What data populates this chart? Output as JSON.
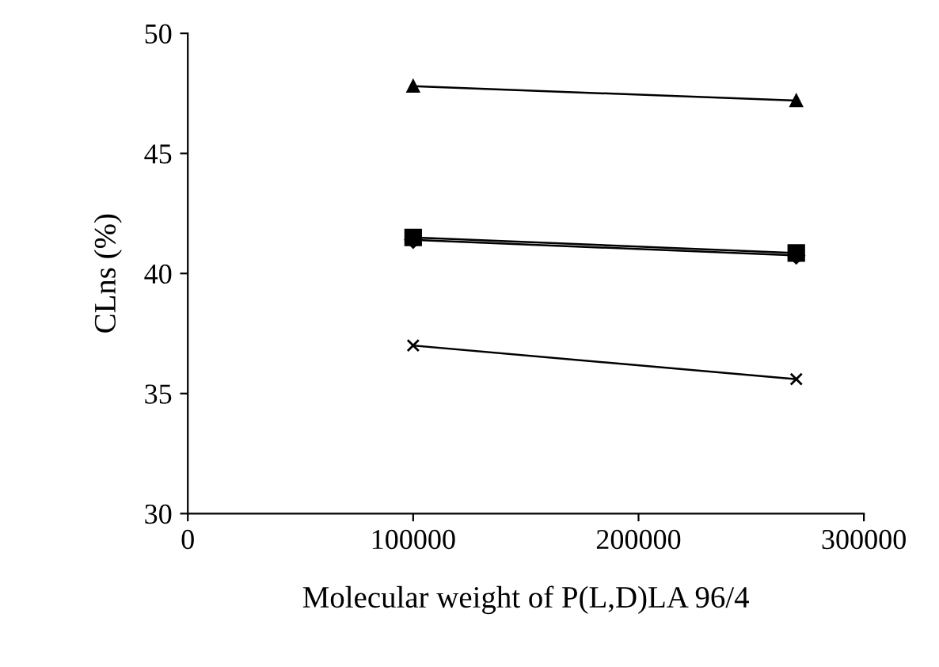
{
  "chart_data": {
    "type": "line",
    "xlabel": "Molecular weight of P(L,D)LA 96/4",
    "ylabel": "CLns (%)",
    "x": [
      100000,
      270000
    ],
    "series": [
      {
        "color": "#000000",
        "values": [
          47.8,
          47.2
        ],
        "marker": "triangle"
      },
      {
        "color": "#000000",
        "values": [
          41.5,
          40.85
        ],
        "marker": "square"
      },
      {
        "color": "#000000",
        "values": [
          41.4,
          40.75
        ],
        "marker": "diamond"
      },
      {
        "color": "#000000",
        "values": [
          37.0,
          35.6
        ],
        "marker": "cross"
      }
    ],
    "xlim": [
      0,
      300000
    ],
    "xticks": [
      0,
      100000,
      200000,
      300000
    ],
    "ylim": [
      30,
      50
    ],
    "yticks": [
      30,
      35,
      40,
      45,
      50
    ],
    "grid": false,
    "line_style": "solid"
  }
}
